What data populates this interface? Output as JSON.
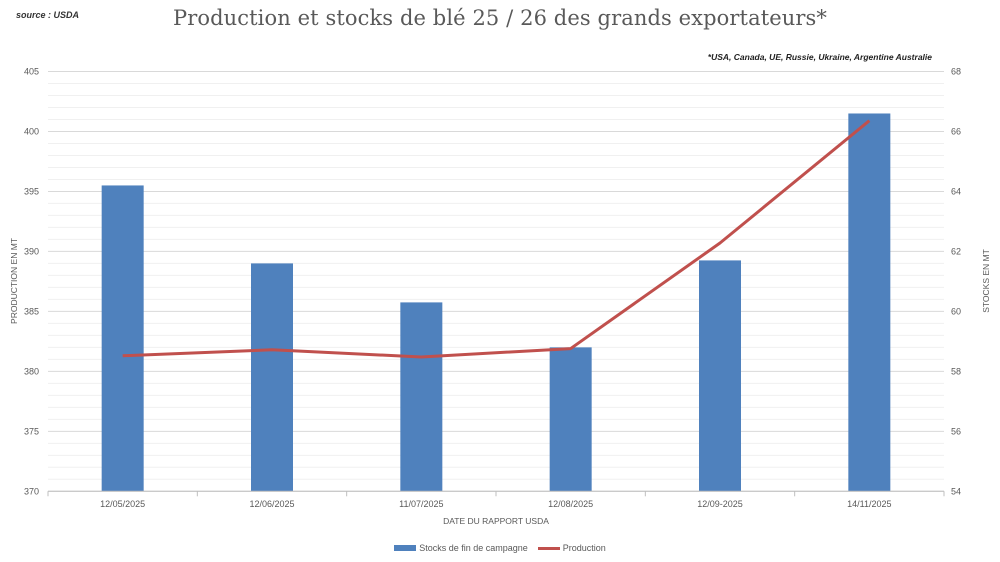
{
  "source": "source : USDA",
  "footnote": "*USA, Canada,  UE, Russie, Ukraine, Argentine Australie",
  "colors": {
    "bar": "#4F81BD",
    "line": "#C0504D",
    "grid": "#D9D9D9",
    "minor_grid": "#F0F0F0"
  },
  "chart_data": {
    "type": "bar+line",
    "title": "Production et stocks de blé 25 / 26 des grands exportateurs*",
    "xlabel": "DATE DU RAPPORT USDA",
    "ylabel": "PRODUCTION EN MT",
    "y2label": "STOCKS EN MT",
    "categories": [
      "12/05/2025",
      "12/06/2025",
      "11/07/2025",
      "12/08/2025",
      "12/09-2025",
      "14/11/2025"
    ],
    "series": [
      {
        "name": "Stocks de fin de campagne",
        "type": "bar",
        "axis": "right",
        "values": [
          64.2,
          61.6,
          60.3,
          58.8,
          61.7,
          66.6
        ]
      },
      {
        "name": "Production",
        "type": "line",
        "axis": "left",
        "values": [
          381.3,
          381.8,
          381.2,
          381.9,
          390.7,
          400.9
        ]
      }
    ],
    "ylim": [
      370,
      405
    ],
    "yticks": [
      370,
      375,
      380,
      385,
      390,
      395,
      400,
      405
    ],
    "y2lim": [
      54,
      68
    ],
    "y2ticks": [
      54,
      56,
      58,
      60,
      62,
      64,
      66,
      68
    ],
    "grid": true,
    "legend_position": "bottom"
  }
}
